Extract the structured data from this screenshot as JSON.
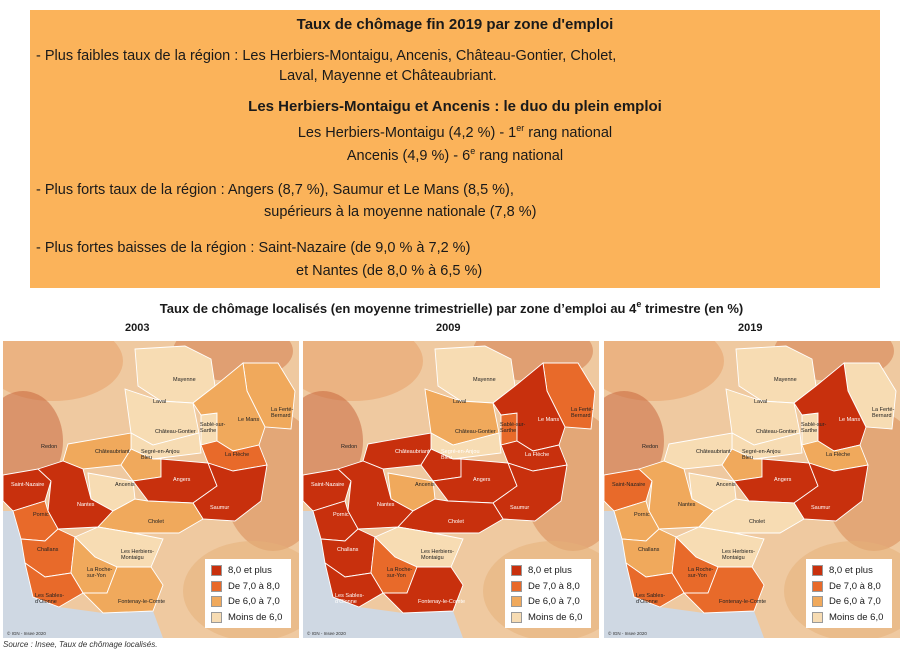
{
  "summary": {
    "title": "Taux de chômage fin 2019 par zone d'emploi",
    "lowest_line1": "- Plus faibles taux de la région : Les Herbiers-Montaigu, Ancenis, Château-Gontier, Cholet,",
    "lowest_line2": "Laval, Mayenne et Châteaubriant.",
    "duo_title": "Les Herbiers-Montaigu et Ancenis : le duo du plein emploi",
    "duo_line1_pre": "Les Herbiers-Montaigu (4,2 %) - 1",
    "duo_line1_sup": "er",
    "duo_line1_post": " rang national",
    "duo_line2_pre": "Ancenis (4,9 %) - 6",
    "duo_line2_sup": "e",
    "duo_line2_post": "  rang national",
    "highest_line1": "- Plus forts taux de la région :  Angers (8,7 %), Saumur et Le Mans (8,5 %),",
    "highest_line2": "supérieurs à la moyenne nationale (7,8 %)",
    "drops_line1": "- Plus fortes baisses de la région : Saint-Nazaire (de 9,0 % à 7,2 %)",
    "drops_line2": "et Nantes (de 8,0 % à 6,5 %)"
  },
  "map_title_pre": "Taux de chômage localisés (en moyenne trimestrielle) par zone d’emploi au 4",
  "map_title_sup": "e",
  "map_title_post": " trimestre (en %)",
  "legend": {
    "items": [
      {
        "label": "8,0 et plus",
        "color": "#c8300d"
      },
      {
        "label": "De 7,0 à 8,0",
        "color": "#e86a2a"
      },
      {
        "label": "De 6,0 à 7,0",
        "color": "#f0a95c"
      },
      {
        "label": "Moins de 6,0",
        "color": "#f7dcb3"
      }
    ]
  },
  "credit": "© IGN - Insee 2020",
  "zones": {
    "mayenne": "Mayenne",
    "laval": "Laval",
    "la_ferte_bernard": "La Ferté-Bernard",
    "chateau_gontier": "Château-Gontier",
    "sable": "Sablé-sur-Sarthe",
    "le_mans": "Le Mans",
    "la_fleche": "La Flèche",
    "chateaubriant": "Châteaubriant",
    "segre": "Segré-en-Anjou Bleu",
    "ancenis": "Ancenis",
    "saint_nazaire": "Saint-Nazaire",
    "angers": "Angers",
    "nantes": "Nantes",
    "saumur": "Saumur",
    "pornic": "Pornic",
    "cholet": "Cholet",
    "challans": "Challans",
    "herbiers": "Les Herbiers-Montaigu",
    "la_roche": "La Roche-sur-Yon",
    "sables": "Les Sables-d'Olonne",
    "fontenay": "Fontenay-le-Comte",
    "redon": "Redon"
  },
  "maps": [
    {
      "year": "2003",
      "classes": {
        "mayenne": 4,
        "laval": 4,
        "la_ferte_bernard": 3,
        "chateau_gontier": 4,
        "sable": 4,
        "le_mans": 3,
        "la_fleche": 2,
        "chateaubriant": 3,
        "segre": 3,
        "ancenis": 4,
        "saint_nazaire": 1,
        "angers": 1,
        "nantes": 1,
        "saumur": 1,
        "pornic": 2,
        "cholet": 3,
        "challans": 2,
        "herbiers": 4,
        "la_roche": 3,
        "sables": 2,
        "fontenay": 3
      }
    },
    {
      "year": "2009",
      "classes": {
        "mayenne": 4,
        "laval": 3,
        "la_ferte_bernard": 2,
        "chateau_gontier": 4,
        "sable": 2,
        "le_mans": 1,
        "la_fleche": 1,
        "chateaubriant": 1,
        "segre": 1,
        "ancenis": 3,
        "saint_nazaire": 1,
        "angers": 1,
        "nantes": 1,
        "saumur": 1,
        "pornic": 1,
        "cholet": 1,
        "challans": 1,
        "herbiers": 4,
        "la_roche": 2,
        "sables": 1,
        "fontenay": 1
      }
    },
    {
      "year": "2019",
      "classes": {
        "mayenne": 4,
        "laval": 4,
        "la_ferte_bernard": 4,
        "chateau_gontier": 4,
        "sable": 4,
        "le_mans": 1,
        "la_fleche": 3,
        "chateaubriant": 4,
        "segre": 3,
        "ancenis": 4,
        "saint_nazaire": 2,
        "angers": 1,
        "nantes": 3,
        "saumur": 1,
        "pornic": 3,
        "cholet": 4,
        "challans": 3,
        "herbiers": 4,
        "la_roche": 2,
        "sables": 2,
        "fontenay": 2
      }
    }
  ],
  "source": "Source : Insee, Taux de chômage localisés."
}
